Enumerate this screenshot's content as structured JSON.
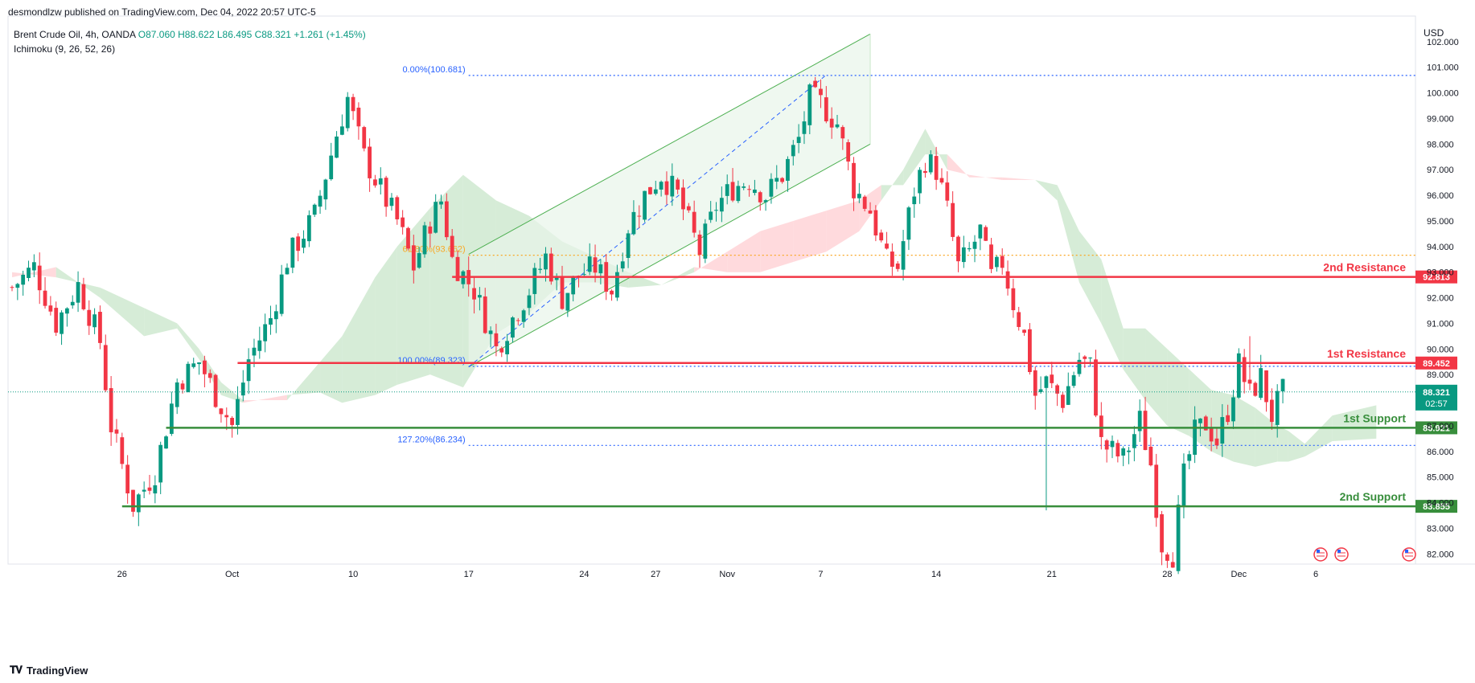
{
  "header": {
    "published_by": "desmondlzw published on TradingView.com, Dec 04, 2022 20:57 UTC-5"
  },
  "legend": {
    "symbol": "Brent Crude Oil, 4h, OANDA",
    "open": "O87.060",
    "high": "H88.622",
    "low": "L86.495",
    "close": "C88.321",
    "change": "+1.261 (+1.45%)",
    "indicator": "Ichimoku (9, 26, 52, 26)"
  },
  "currency": "USD",
  "footer": {
    "brand": "TradingView",
    "logo_icon": "tradingview-logo-icon"
  },
  "colors": {
    "up": "#089981",
    "down": "#f23645",
    "resistance": "#f23645",
    "support": "#388e3c",
    "fib": "#2962ff",
    "fib618": "#f9a825",
    "cloud_bull": "#c8e6c9",
    "cloud_bear": "#ffcdd2",
    "channel": "#4caf50"
  },
  "chart_data": {
    "type": "candlestick",
    "title": "",
    "y_range": [
      81.6,
      103.0
    ],
    "y_ticks": [
      "102.000",
      "101.000",
      "100.000",
      "99.000",
      "98.000",
      "97.000",
      "96.000",
      "95.000",
      "94.000",
      "93.000",
      "92.000",
      "91.000",
      "90.000",
      "89.000",
      "88.000",
      "87.000",
      "86.000",
      "85.000",
      "84.000",
      "83.000",
      "82.000"
    ],
    "x_ticks": [
      {
        "label": "26",
        "bar": 20
      },
      {
        "label": "Oct",
        "bar": 40
      },
      {
        "label": "10",
        "bar": 62
      },
      {
        "label": "17",
        "bar": 83
      },
      {
        "label": "24",
        "bar": 104
      },
      {
        "label": "27",
        "bar": 117
      },
      {
        "label": "Nov",
        "bar": 130
      },
      {
        "label": "7",
        "bar": 147
      },
      {
        "label": "14",
        "bar": 168
      },
      {
        "label": "21",
        "bar": 189
      },
      {
        "label": "28",
        "bar": 210
      },
      {
        "label": "Dec",
        "bar": 223
      },
      {
        "label": "6",
        "bar": 237
      }
    ],
    "bar_count": 250,
    "anchors": [
      [
        0,
        92.4
      ],
      [
        4,
        93.2
      ],
      [
        8,
        91.0
      ],
      [
        12,
        92.5
      ],
      [
        16,
        90.3
      ],
      [
        18,
        87.0
      ],
      [
        22,
        83.9
      ],
      [
        26,
        85.2
      ],
      [
        30,
        88.7
      ],
      [
        34,
        89.5
      ],
      [
        37,
        88.2
      ],
      [
        40,
        87.0
      ],
      [
        43,
        89.6
      ],
      [
        47,
        91.2
      ],
      [
        50,
        93.5
      ],
      [
        55,
        95.2
      ],
      [
        59,
        98.4
      ],
      [
        61,
        99.8
      ],
      [
        64,
        97.5
      ],
      [
        67,
        96.2
      ],
      [
        70,
        95.0
      ],
      [
        73,
        93.2
      ],
      [
        76,
        95.0
      ],
      [
        78,
        95.8
      ],
      [
        80,
        93.5
      ],
      [
        84,
        92.3
      ],
      [
        88,
        90.0
      ],
      [
        91,
        91.2
      ],
      [
        94,
        92.3
      ],
      [
        97,
        93.6
      ],
      [
        100,
        92.0
      ],
      [
        103,
        92.9
      ],
      [
        106,
        93.2
      ],
      [
        109,
        92.3
      ],
      [
        112,
        94.8
      ],
      [
        115,
        96.0
      ],
      [
        118,
        96.8
      ],
      [
        121,
        96.0
      ],
      [
        125,
        93.8
      ],
      [
        128,
        95.6
      ],
      [
        131,
        96.3
      ],
      [
        134,
        96.6
      ],
      [
        137,
        96.0
      ],
      [
        140,
        96.8
      ],
      [
        143,
        98.2
      ],
      [
        145,
        99.8
      ],
      [
        147,
        99.6
      ],
      [
        150,
        98.8
      ],
      [
        153,
        96.3
      ],
      [
        156,
        95.4
      ],
      [
        159,
        93.4
      ],
      [
        161,
        93.2
      ],
      [
        164,
        96.2
      ],
      [
        166,
        97.4
      ],
      [
        168,
        97.0
      ],
      [
        170,
        95.4
      ],
      [
        172,
        93.2
      ],
      [
        174,
        93.8
      ],
      [
        176,
        94.6
      ],
      [
        178,
        92.8
      ],
      [
        180,
        93.4
      ],
      [
        182,
        91.8
      ],
      [
        184,
        90.5
      ],
      [
        186,
        88.2
      ],
      [
        188,
        88.7
      ],
      [
        191,
        88.0
      ],
      [
        194,
        89.6
      ],
      [
        196,
        89.3
      ],
      [
        198,
        86.3
      ],
      [
        200,
        86.0
      ],
      [
        202,
        85.7
      ],
      [
        205,
        87.2
      ],
      [
        207,
        85.5
      ],
      [
        209,
        82.4
      ],
      [
        211,
        82.0
      ],
      [
        213,
        85.0
      ],
      [
        215,
        86.7
      ],
      [
        217,
        87.1
      ],
      [
        219,
        86.4
      ],
      [
        221,
        87.6
      ],
      [
        223,
        89.4
      ],
      [
        225,
        88.2
      ],
      [
        227,
        88.9
      ],
      [
        229,
        87.4
      ],
      [
        231,
        88.3
      ]
    ],
    "spike_lows": [
      [
        188,
        83.7
      ],
      [
        223,
        89.3
      ]
    ],
    "spike_highs": [
      [
        225,
        90.5
      ]
    ],
    "levels": [
      {
        "name": "2nd Resistance",
        "value": 92.813,
        "label": "92.813",
        "color": "red",
        "from_bar": 80
      },
      {
        "name": "1st Resistance",
        "value": 89.452,
        "label": "89.452",
        "color": "red",
        "from_bar": 41
      },
      {
        "name": "1st Support",
        "value": 86.921,
        "label": "86.921",
        "color": "green",
        "from_bar": 28
      },
      {
        "name": "2nd Support",
        "value": 83.855,
        "label": "83.855",
        "color": "green",
        "from_bar": 20
      }
    ],
    "current_price": {
      "value": 88.321,
      "label": "88.321",
      "countdown": "02:57"
    },
    "fibonacci": [
      {
        "label": "0.00%(100.681)",
        "value": 100.681
      },
      {
        "label": "61.80%(93.662)",
        "value": 93.662
      },
      {
        "label": "100.00%(89.323)",
        "value": 89.323
      },
      {
        "label": "127.20%(86.234)",
        "value": 86.234
      }
    ],
    "fib_from_bar": 83,
    "channel": {
      "upper": [
        [
          83,
          93.7
        ],
        [
          156,
          102.3
        ]
      ],
      "lower": [
        [
          83,
          89.3
        ],
        [
          156,
          98.0
        ]
      ]
    },
    "fib_trend": [
      [
        83,
        89.3
      ],
      [
        148,
        100.7
      ]
    ],
    "cloud": [
      [
        0,
        93.0,
        92.8
      ],
      [
        8,
        92.8,
        93.2
      ],
      [
        16,
        92.4,
        92.0
      ],
      [
        24,
        91.6,
        90.5
      ],
      [
        30,
        91.0,
        90.8
      ],
      [
        34,
        90.0,
        89.6
      ],
      [
        38,
        88.7,
        88.2
      ],
      [
        42,
        88.0,
        87.9
      ],
      [
        50,
        88.0,
        88.2
      ],
      [
        56,
        89.5,
        88.3
      ],
      [
        60,
        90.5,
        87.9
      ],
      [
        66,
        92.8,
        88.2
      ],
      [
        70,
        94.0,
        88.6
      ],
      [
        76,
        95.5,
        89.0
      ],
      [
        82,
        96.8,
        88.5
      ],
      [
        88,
        95.8,
        90.6
      ],
      [
        94,
        95.2,
        91.4
      ],
      [
        100,
        94.2,
        92.6
      ],
      [
        106,
        93.6,
        92.6
      ],
      [
        112,
        93.0,
        92.4
      ],
      [
        118,
        92.5,
        92.5
      ],
      [
        124,
        93.2,
        93.0
      ],
      [
        130,
        93.0,
        93.8
      ],
      [
        136,
        93.0,
        94.6
      ],
      [
        142,
        93.4,
        95.0
      ],
      [
        148,
        93.8,
        95.4
      ],
      [
        154,
        94.6,
        95.8
      ],
      [
        158,
        95.8,
        96.4
      ],
      [
        162,
        97.0,
        96.4
      ],
      [
        166,
        98.6,
        97.6
      ],
      [
        170,
        97.0,
        97.6
      ],
      [
        174,
        96.8,
        96.7
      ],
      [
        180,
        96.6,
        96.7
      ],
      [
        186,
        96.6,
        96.6
      ],
      [
        190,
        96.4,
        95.8
      ],
      [
        194,
        94.6,
        92.6
      ],
      [
        198,
        93.5,
        91.0
      ],
      [
        202,
        90.8,
        89.2
      ],
      [
        206,
        90.8,
        88.0
      ],
      [
        210,
        90.0,
        87.0
      ],
      [
        214,
        89.2,
        86.6
      ],
      [
        218,
        88.4,
        86.0
      ],
      [
        222,
        88.2,
        85.6
      ],
      [
        226,
        87.7,
        85.4
      ],
      [
        230,
        87.0,
        85.6
      ],
      [
        232,
        86.8,
        85.6
      ],
      [
        235,
        86.3,
        85.8
      ],
      [
        240,
        87.4,
        86.4
      ],
      [
        248,
        87.8,
        86.5
      ]
    ]
  }
}
